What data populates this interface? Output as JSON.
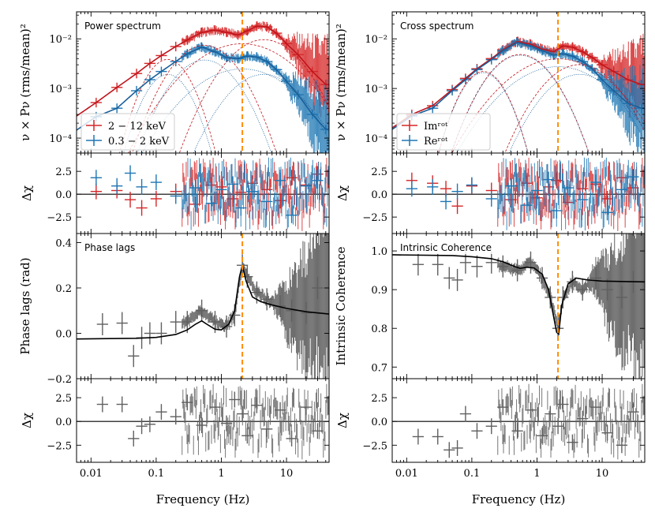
{
  "chart_data": [
    {
      "id": "power",
      "type": "line",
      "title": "Power spectrum",
      "xlabel": "",
      "ylabel": "ν × Pν (rms/mean)²",
      "xscale": "log",
      "yscale": "log",
      "xlim": [
        0.006,
        45
      ],
      "ylim": [
        5e-05,
        0.035
      ],
      "yticks": [
        0.0001,
        0.001,
        0.01
      ],
      "ytick_labels": [
        "10⁻⁴",
        "10⁻³",
        "10⁻²"
      ],
      "vline": 2.1,
      "legend": {
        "placement": "bottom-left",
        "entries": [
          "2 − 12 keV",
          "0.3 − 2 keV"
        ]
      },
      "series": [
        {
          "name": "2 − 12 keV",
          "color": "#d62728",
          "x": [
            0.012,
            0.025,
            0.05,
            0.08,
            0.12,
            0.2,
            0.3,
            0.5,
            0.8,
            1.2,
            1.8,
            2.5,
            3.5,
            5,
            7,
            10,
            15,
            25,
            40
          ],
          "y": [
            0.00052,
            0.00105,
            0.002,
            0.0032,
            0.0046,
            0.007,
            0.0095,
            0.0135,
            0.015,
            0.0135,
            0.012,
            0.0145,
            0.018,
            0.0175,
            0.013,
            0.008,
            0.0048,
            0.0022,
            0.0012
          ]
        },
        {
          "name": "0.3 − 2 keV",
          "color": "#1f77b4",
          "x": [
            0.012,
            0.025,
            0.05,
            0.08,
            0.12,
            0.2,
            0.3,
            0.5,
            0.8,
            1.2,
            1.8,
            2.5,
            3.5,
            5,
            7,
            10,
            15,
            25,
            40
          ],
          "y": [
            0.00027,
            0.0004,
            0.0009,
            0.0015,
            0.0022,
            0.0035,
            0.005,
            0.0068,
            0.0055,
            0.0042,
            0.004,
            0.0045,
            0.0043,
            0.0035,
            0.0024,
            0.0014,
            0.00075,
            0.0003,
            0.00015
          ]
        }
      ]
    },
    {
      "id": "cross",
      "type": "line",
      "title": "Cross spectrum",
      "xlabel": "",
      "ylabel": "ν × Pν (rms/mean)²",
      "xscale": "log",
      "yscale": "log",
      "xlim": [
        0.006,
        45
      ],
      "ylim": [
        5e-05,
        0.035
      ],
      "yticks": [
        0.0001,
        0.001,
        0.01
      ],
      "ytick_labels": [
        "10⁻⁴",
        "10⁻³",
        "10⁻²"
      ],
      "vline": 2.1,
      "legend": {
        "placement": "bottom-left",
        "entries": [
          "Imʳᵒᵗ",
          "Reʳᵒᵗ"
        ]
      },
      "series": [
        {
          "name": "Imʳᵒᵗ",
          "color": "#d62728",
          "x": [
            0.012,
            0.025,
            0.05,
            0.08,
            0.12,
            0.2,
            0.3,
            0.5,
            0.8,
            1.2,
            1.8,
            2.5,
            3.5,
            5,
            7,
            10,
            15,
            25,
            40
          ],
          "y": [
            0.0003,
            0.00045,
            0.00095,
            0.0016,
            0.0025,
            0.004,
            0.006,
            0.0088,
            0.0078,
            0.0062,
            0.0055,
            0.0072,
            0.0068,
            0.0055,
            0.0042,
            0.003,
            0.0022,
            0.0015,
            0.0012
          ]
        },
        {
          "name": "Reʳᵒᵗ",
          "color": "#1f77b4",
          "x": [
            0.012,
            0.025,
            0.05,
            0.08,
            0.12,
            0.2,
            0.3,
            0.5,
            0.8,
            1.2,
            1.8,
            2.5,
            3.5,
            5,
            7,
            10,
            15,
            25,
            40
          ],
          "y": [
            0.00028,
            0.0004,
            0.0009,
            0.0015,
            0.0024,
            0.0038,
            0.0058,
            0.0085,
            0.0072,
            0.0058,
            0.0047,
            0.005,
            0.0045,
            0.0035,
            0.0025,
            0.0015,
            0.0009,
            0.0005,
            0.0004
          ]
        }
      ]
    },
    {
      "id": "resid1",
      "type": "scatter",
      "xlabel": "",
      "ylabel": "Δχ",
      "xscale": "log",
      "xlim": [
        0.006,
        45
      ],
      "ylim": [
        -4.3,
        4.5
      ],
      "yticks": [
        -2.5,
        0,
        2.5
      ],
      "ytick_labels": [
        "−2.5",
        "0.0",
        "2.5"
      ],
      "series": [
        {
          "name": "2 − 12 keV",
          "color": "#d62728",
          "x": [
            0.012,
            0.025,
            0.04,
            0.06,
            0.1,
            0.2,
            0.4,
            0.7,
            1,
            1.5,
            2,
            3,
            5,
            8,
            12,
            20,
            30
          ],
          "y": [
            0.3,
            0.4,
            -0.6,
            -1.5,
            -0.5,
            0.3,
            -1.1,
            1.0,
            0.8,
            -0.5,
            0.2,
            1.2,
            0.5,
            -0.7,
            1.8,
            1.0,
            2.2
          ]
        },
        {
          "name": "0.3 − 2 keV",
          "color": "#1f77b4",
          "x": [
            0.012,
            0.025,
            0.04,
            0.06,
            0.1,
            0.2,
            0.4,
            0.7,
            1,
            1.5,
            2,
            3,
            5,
            8,
            12,
            20,
            30
          ],
          "y": [
            1.8,
            0.9,
            2.3,
            0.8,
            1.3,
            -0.2,
            0.7,
            -1.0,
            0.5,
            1.1,
            -1.5,
            0.3,
            -0.8,
            1.5,
            -2.3,
            0.9,
            1.5
          ]
        }
      ]
    },
    {
      "id": "resid2",
      "type": "scatter",
      "xlabel": "",
      "ylabel": "Δχ",
      "xscale": "log",
      "xlim": [
        0.006,
        45
      ],
      "ylim": [
        -4.3,
        4.5
      ],
      "yticks": [
        -2.5,
        0,
        2.5
      ],
      "ytick_labels": [
        "−2.5",
        "0.0",
        "2.5"
      ],
      "series": [
        {
          "name": "Imʳᵒᵗ",
          "color": "#d62728",
          "x": [
            0.012,
            0.025,
            0.04,
            0.06,
            0.1,
            0.2,
            0.4,
            0.7,
            1,
            1.5,
            2,
            3,
            5,
            8,
            12,
            20,
            30
          ],
          "y": [
            1.5,
            1.2,
            0.6,
            -1.3,
            0.9,
            0.4,
            -0.6,
            1.2,
            -0.4,
            0.8,
            1.5,
            -0.9,
            0.6,
            1.1,
            -0.5,
            1.8,
            0.7
          ]
        },
        {
          "name": "Reʳᵒᵗ",
          "color": "#1f77b4",
          "x": [
            0.012,
            0.025,
            0.04,
            0.06,
            0.1,
            0.2,
            0.4,
            0.7,
            1,
            1.5,
            2,
            3,
            5,
            8,
            12,
            20,
            30
          ],
          "y": [
            0.6,
            0.8,
            -0.8,
            0.3,
            1.0,
            -0.5,
            0.9,
            -1.2,
            0.4,
            1.6,
            -1.8,
            0.7,
            -0.6,
            1.3,
            -2.0,
            0.5,
            1.9
          ]
        }
      ]
    },
    {
      "id": "lags",
      "type": "line",
      "title": "Phase lags",
      "xlabel": "",
      "ylabel": "Phase lags (rad)",
      "xscale": "log",
      "xlim": [
        0.006,
        45
      ],
      "ylim": [
        -0.2,
        0.44
      ],
      "yticks": [
        -0.2,
        0,
        0.2,
        0.4
      ],
      "ytick_labels": [
        "−0.2",
        "0.0",
        "0.2",
        "0.4"
      ],
      "vline": 2.1,
      "series": [
        {
          "name": "data",
          "color": "#606060",
          "x": [
            0.015,
            0.03,
            0.045,
            0.06,
            0.08,
            0.12,
            0.2,
            0.3,
            0.5,
            0.8,
            1.2,
            1.6,
            2.1,
            2.5,
            3.5,
            5,
            8,
            12,
            20,
            30
          ],
          "y": [
            0.04,
            0.045,
            -0.1,
            -0.02,
            0.0,
            0.0,
            0.05,
            0.05,
            0.1,
            0.05,
            0.03,
            0.08,
            0.3,
            0.25,
            0.18,
            0.15,
            0.12,
            0.1,
            0.09,
            0.2
          ]
        },
        {
          "name": "model",
          "color": "#000000",
          "x": [
            0.006,
            0.05,
            0.1,
            0.2,
            0.3,
            0.4,
            0.5,
            0.6,
            0.8,
            1.0,
            1.3,
            1.6,
            1.9,
            2.1,
            2.4,
            3,
            4,
            6,
            10,
            20,
            45
          ],
          "y": [
            -0.025,
            -0.022,
            -0.018,
            -0.005,
            0.015,
            0.04,
            0.055,
            0.04,
            0.018,
            0.015,
            0.04,
            0.1,
            0.25,
            0.3,
            0.23,
            0.16,
            0.14,
            0.125,
            0.11,
            0.095,
            0.085
          ]
        }
      ]
    },
    {
      "id": "coherence",
      "type": "line",
      "title": "Intrinsic Coherence",
      "xlabel": "",
      "ylabel": "Intrinsic Coherence",
      "xscale": "log",
      "xlim": [
        0.006,
        45
      ],
      "ylim": [
        0.67,
        1.045
      ],
      "yticks": [
        0.7,
        0.8,
        0.9,
        1.0
      ],
      "ytick_labels": [
        "0.7",
        "0.8",
        "0.9",
        "1.0"
      ],
      "vline": 2.1,
      "series": [
        {
          "name": "data",
          "color": "#606060",
          "x": [
            0.015,
            0.03,
            0.045,
            0.06,
            0.08,
            0.12,
            0.2,
            0.3,
            0.5,
            0.8,
            1.2,
            1.6,
            2.1,
            2.5,
            3.5,
            5,
            8,
            12,
            20,
            30
          ],
          "y": [
            0.965,
            0.965,
            0.93,
            0.925,
            0.97,
            0.96,
            0.97,
            0.96,
            0.95,
            0.97,
            0.93,
            0.88,
            0.8,
            0.88,
            0.92,
            0.9,
            0.93,
            0.9,
            0.88,
            0.92
          ]
        },
        {
          "name": "model",
          "color": "#000000",
          "x": [
            0.006,
            0.05,
            0.1,
            0.2,
            0.3,
            0.45,
            0.55,
            0.7,
            0.9,
            1.2,
            1.5,
            1.8,
            2.0,
            2.15,
            2.4,
            3,
            4,
            6,
            10,
            20,
            45
          ],
          "y": [
            0.99,
            0.988,
            0.985,
            0.98,
            0.972,
            0.96,
            0.955,
            0.958,
            0.956,
            0.94,
            0.9,
            0.83,
            0.79,
            0.785,
            0.86,
            0.915,
            0.93,
            0.925,
            0.922,
            0.921,
            0.92
          ]
        }
      ]
    },
    {
      "id": "resid3",
      "type": "scatter",
      "xlabel": "Frequency (Hz)",
      "ylabel": "Δχ",
      "xscale": "log",
      "xlim": [
        0.006,
        45
      ],
      "ylim": [
        -4.3,
        4.5
      ],
      "yticks": [
        -2.5,
        0,
        2.5
      ],
      "ytick_labels": [
        "−2.5",
        "0.0",
        "2.5"
      ],
      "xticks": [
        0.01,
        0.1,
        1,
        10
      ],
      "xtick_labels": [
        "0.01",
        "0.1",
        "1",
        "10"
      ],
      "series": [
        {
          "name": "data",
          "color": "#606060",
          "x": [
            0.015,
            0.03,
            0.045,
            0.06,
            0.08,
            0.12,
            0.2,
            0.3,
            0.5,
            0.8,
            1.2,
            1.6,
            2.1,
            2.5,
            3.5,
            5,
            8,
            12,
            20,
            30
          ],
          "y": [
            1.8,
            1.8,
            -1.8,
            -0.5,
            -0.3,
            1.0,
            0.5,
            2.0,
            -0.4,
            1.5,
            -0.2,
            2.3,
            0.8,
            -1.5,
            1.7,
            -0.8,
            1.2,
            -1.8,
            1.5,
            -1.0
          ]
        }
      ]
    },
    {
      "id": "resid4",
      "type": "scatter",
      "xlabel": "Frequency (Hz)",
      "ylabel": "Δχ",
      "xscale": "log",
      "xlim": [
        0.006,
        45
      ],
      "ylim": [
        -4.3,
        4.5
      ],
      "yticks": [
        -2.5,
        0,
        2.5
      ],
      "ytick_labels": [
        "−2.5",
        "0.0",
        "2.5"
      ],
      "xticks": [
        0.01,
        0.1,
        1,
        10
      ],
      "xtick_labels": [
        "0.01",
        "0.1",
        "1",
        "10"
      ],
      "series": [
        {
          "name": "data",
          "color": "#606060",
          "x": [
            0.015,
            0.03,
            0.045,
            0.06,
            0.08,
            0.12,
            0.2,
            0.3,
            0.5,
            0.8,
            1.2,
            1.6,
            2.1,
            2.5,
            3.5,
            5,
            8,
            12,
            20,
            30
          ],
          "y": [
            -1.6,
            -1.6,
            -3.0,
            -2.8,
            0.8,
            -1.0,
            -0.5,
            1.5,
            -1.0,
            1.2,
            -1.5,
            0.8,
            -0.5,
            1.8,
            -2.2,
            0.3,
            1.5,
            -1.2,
            -2.5,
            1.0
          ]
        }
      ]
    }
  ]
}
